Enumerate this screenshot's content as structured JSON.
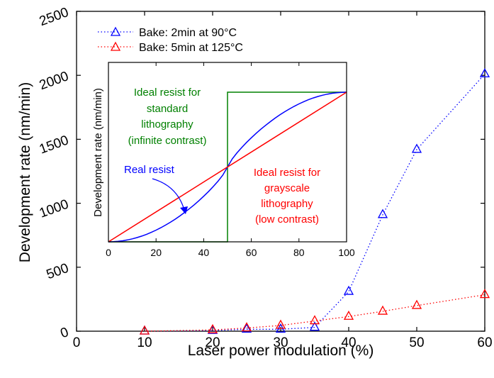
{
  "chart_data": [
    {
      "type": "line",
      "xlabel": "Laser power modulation (%)",
      "ylabel": "Development rate (nm/min)",
      "xlim": [
        0,
        60
      ],
      "ylim": [
        0,
        2500
      ],
      "xticks": [
        "0",
        "10",
        "20",
        "30",
        "40",
        "50",
        "60"
      ],
      "yticks": [
        "0",
        "500",
        "1000",
        "1500",
        "2000",
        "2500"
      ],
      "grid": false,
      "legend_position": "top-left",
      "series": [
        {
          "name": "Bake: 2min at 90°C",
          "color": "#0000ff",
          "marker": "triangle",
          "linestyle": "dotted",
          "x": [
            10,
            20,
            25,
            30,
            35,
            40,
            45,
            50,
            60
          ],
          "y": [
            0,
            5,
            15,
            15,
            30,
            310,
            910,
            1420,
            2010
          ]
        },
        {
          "name": "Bake: 5min at 125°C",
          "color": "#ff0000",
          "marker": "triangle",
          "linestyle": "dotted",
          "x": [
            10,
            20,
            25,
            30,
            35,
            40,
            45,
            50,
            60
          ],
          "y": [
            0,
            10,
            25,
            45,
            80,
            115,
            155,
            200,
            285
          ]
        }
      ]
    },
    {
      "type": "line",
      "inset": true,
      "xlabel": "",
      "ylabel": "Development rate (nm/min)",
      "xlim": [
        0,
        100
      ],
      "ylim": [
        0,
        1
      ],
      "xticks": [
        "0",
        "20",
        "40",
        "60",
        "80",
        "100"
      ],
      "series": [
        {
          "name": "Ideal resist for standard lithography (infinite contrast)",
          "color": "#008000",
          "shape": "step",
          "step_at": 50
        },
        {
          "name": "Real resist",
          "color": "#0000ff",
          "shape": "sigmoid"
        },
        {
          "name": "Ideal resist for grayscale lithography (low contrast)",
          "color": "#ff0000",
          "shape": "linear"
        }
      ],
      "annotations": {
        "green": [
          "Ideal resist for",
          "standard",
          "lithography",
          "(infinite contrast)"
        ],
        "blue": [
          "Real resist"
        ],
        "red": [
          "Ideal resist for",
          "grayscale",
          "lithography",
          "(low contrast)"
        ]
      }
    }
  ]
}
